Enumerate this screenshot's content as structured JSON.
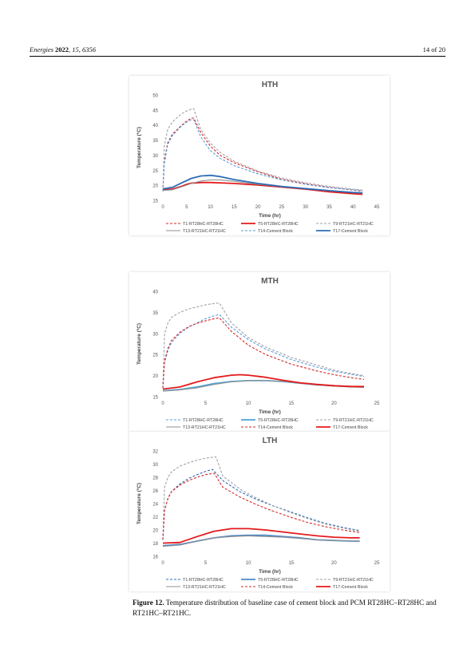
{
  "header": {
    "journal": "Energies",
    "year": "2022",
    "volume": "15",
    "article": "6356",
    "page": "14 of 20"
  },
  "caption": {
    "label": "Figure 12.",
    "text": "Temperature distribution of baseline case of cement block and PCM RT28HC–RT28HC and RT21HC–RT21HC."
  },
  "chart_data": [
    {
      "type": "line",
      "title": "HTH",
      "xlabel": "Time (hr)",
      "ylabel": "Temperature (ºC)",
      "xlim": [
        0,
        45
      ],
      "ylim": [
        15,
        50
      ],
      "xticks": [
        0,
        5,
        10,
        15,
        20,
        25,
        30,
        35,
        40,
        45
      ],
      "yticks": [
        15,
        20,
        25,
        30,
        35,
        40,
        45,
        50
      ],
      "grid": false,
      "legend_position": "bottom",
      "series": [
        {
          "name": "T1-RT28HC-RT28HC",
          "color": "#d62728",
          "dash": "dashed",
          "x": [
            0,
            0.3,
            1,
            2,
            3,
            4,
            5,
            6,
            6.5,
            8,
            10,
            12,
            15,
            20,
            25,
            30,
            35,
            40,
            42
          ],
          "y": [
            18,
            28,
            34,
            37,
            38.5,
            40,
            41.3,
            42.3,
            42.3,
            37.5,
            33,
            30,
            27.5,
            24.5,
            22,
            20.5,
            19.3,
            18.4,
            18.1
          ]
        },
        {
          "name": "T5-RT28HC-RT28HC",
          "color": "#e41a1c",
          "dash": "solid",
          "x": [
            0,
            2,
            4,
            5,
            6,
            8,
            10,
            12,
            15,
            20,
            25,
            30,
            35,
            40,
            42
          ],
          "y": [
            18.5,
            18.7,
            19.7,
            20.3,
            20.7,
            20.9,
            20.9,
            20.8,
            20.6,
            20.1,
            19.4,
            18.7,
            17.8,
            17.2,
            17
          ],
          "thick": true
        },
        {
          "name": "T9-RT21HC-RT21HC",
          "color": "#a0a0a8",
          "dash": "dashed",
          "x": [
            0,
            0.3,
            1,
            2,
            3,
            4,
            5,
            6,
            6.5,
            8,
            10,
            12,
            15,
            20,
            25,
            30,
            35,
            40,
            42
          ],
          "y": [
            18,
            33,
            38.5,
            41,
            42.5,
            43.8,
            44.7,
            45.3,
            45.4,
            38.5,
            34,
            31,
            28,
            24.7,
            22.4,
            20.8,
            19.6,
            18.7,
            18.4
          ]
        },
        {
          "name": "T13-RT21HC-RT21HC",
          "color": "#909090",
          "dash": "solid",
          "x": [
            0,
            2,
            4,
            6,
            8,
            10,
            12,
            15,
            20,
            25,
            30,
            35,
            40,
            42
          ],
          "y": [
            18.3,
            18.5,
            19.5,
            20.6,
            21.4,
            21.8,
            21.8,
            21.3,
            20.3,
            19.6,
            18.9,
            18.2,
            17.6,
            17.4
          ]
        },
        {
          "name": "T14-Cement Block",
          "color": "#5b9bd5",
          "dash": "dashed",
          "x": [
            0,
            0.3,
            1,
            2,
            3,
            4,
            5,
            6,
            6.5,
            8,
            10,
            12,
            15,
            20,
            25,
            30,
            35,
            40,
            42
          ],
          "y": [
            18,
            27,
            33.5,
            36.5,
            38.2,
            39.8,
            41,
            41.8,
            41.8,
            36,
            31.5,
            29,
            26.5,
            23.8,
            21.8,
            20.3,
            19.2,
            18.5,
            18.2
          ]
        },
        {
          "name": "T17-Cement Block",
          "color": "#2e6db4",
          "dash": "solid",
          "x": [
            0,
            2,
            4,
            6,
            8,
            10,
            12,
            15,
            20,
            25,
            30,
            35,
            40,
            42
          ],
          "y": [
            18.8,
            19.3,
            20.8,
            22.3,
            23.1,
            23.3,
            22.9,
            21.9,
            20.6,
            19.6,
            18.9,
            18.2,
            17.6,
            17.5
          ],
          "thick": true
        }
      ]
    },
    {
      "type": "line",
      "title": "MTH",
      "xlabel": "Time (hr)",
      "ylabel": "Temperature (ºC)",
      "xlim": [
        0,
        25
      ],
      "ylim": [
        15,
        40
      ],
      "xticks": [
        0,
        5,
        10,
        15,
        20,
        25
      ],
      "yticks": [
        15,
        20,
        25,
        30,
        35,
        40
      ],
      "grid": false,
      "legend_position": "bottom",
      "series": [
        {
          "name": "T1-RT28HC-RT28HC",
          "color": "#5b9bd5",
          "dash": "dashed",
          "x": [
            0,
            0.2,
            0.6,
            1,
            2,
            3,
            4,
            5,
            6,
            6.6,
            8,
            10,
            12,
            15,
            18,
            20,
            22,
            23.5
          ],
          "y": [
            17,
            23,
            26,
            27.8,
            30,
            31.5,
            32.5,
            33.5,
            34.2,
            34.5,
            31.5,
            28.5,
            26.3,
            23.8,
            22,
            21,
            20.3,
            19.8
          ]
        },
        {
          "name": "T5-RT28HC-RT28HC",
          "color": "#4aa3d8",
          "dash": "solid",
          "x": [
            0,
            2,
            4,
            6,
            8,
            10,
            12,
            14,
            16,
            18,
            20,
            22,
            23.5
          ],
          "y": [
            16.4,
            16.7,
            17.3,
            18.1,
            18.6,
            18.8,
            18.8,
            18.6,
            18.2,
            17.8,
            17.6,
            17.4,
            17.3
          ],
          "thick": true
        },
        {
          "name": "T9-RT21HC-RT21HC",
          "color": "#a0a0a8",
          "dash": "dashed",
          "x": [
            0,
            0.2,
            0.6,
            1,
            2,
            3,
            4,
            5,
            6,
            6.6,
            8,
            10,
            12,
            15,
            18,
            20,
            22,
            23.5
          ],
          "y": [
            17,
            30,
            32.5,
            33.8,
            35,
            35.8,
            36.3,
            36.8,
            37.1,
            37.2,
            32.5,
            29,
            26.8,
            24.3,
            22.5,
            21.3,
            20.5,
            20
          ]
        },
        {
          "name": "T13-RT21HC-RT21HC",
          "color": "#909090",
          "dash": "solid",
          "x": [
            0,
            2,
            4,
            6,
            8,
            10,
            12,
            14,
            16,
            18,
            20,
            22,
            23.5
          ],
          "y": [
            16.3,
            16.6,
            17.1,
            17.9,
            18.5,
            18.8,
            18.8,
            18.6,
            18.2,
            17.8,
            17.5,
            17.3,
            17.2
          ]
        },
        {
          "name": "T14-Cement Block",
          "color": "#d62728",
          "dash": "dashed",
          "x": [
            0,
            0.2,
            0.6,
            1,
            2,
            3,
            4,
            5,
            6,
            6.6,
            8,
            10,
            12,
            15,
            18,
            20,
            22,
            23.5
          ],
          "y": [
            17,
            23.5,
            26.5,
            28.3,
            30.3,
            31.6,
            32.4,
            33,
            33.5,
            33.7,
            30.5,
            27.2,
            25,
            22.7,
            21.1,
            20.2,
            19.5,
            19.1
          ]
        },
        {
          "name": "T17-Cement Block",
          "color": "#e41a1c",
          "dash": "solid",
          "x": [
            0,
            2,
            4,
            6,
            8,
            9,
            10,
            12,
            14,
            16,
            18,
            20,
            22,
            23.5
          ],
          "y": [
            16.8,
            17.3,
            18.5,
            19.5,
            20.1,
            20.2,
            20.1,
            19.6,
            18.9,
            18.3,
            17.9,
            17.6,
            17.4,
            17.4
          ],
          "thick": true
        }
      ]
    },
    {
      "type": "line",
      "title": "LTH",
      "xlabel": "Time (hr)",
      "ylabel": "Temperature (ºC)",
      "xlim": [
        0,
        25
      ],
      "ylim": [
        16,
        32
      ],
      "xticks": [
        0,
        5,
        10,
        15,
        20,
        25
      ],
      "yticks": [
        16,
        18,
        20,
        22,
        24,
        26,
        28,
        30,
        32
      ],
      "grid": false,
      "legend_position": "bottom",
      "series": [
        {
          "name": "T1-RT28HC-RT28HC",
          "color": "#2e6db4",
          "dash": "dashed",
          "x": [
            0,
            0.2,
            0.6,
            1,
            2,
            3,
            4,
            5,
            5.8,
            7,
            9,
            11,
            13,
            15,
            17,
            19,
            21,
            23
          ],
          "y": [
            18.5,
            23,
            24.8,
            25.8,
            27,
            27.8,
            28.4,
            28.9,
            29.2,
            27.5,
            25.8,
            24.6,
            23.6,
            22.7,
            21.8,
            21,
            20.4,
            19.9
          ]
        },
        {
          "name": "T5-RT28HC-RT28HC",
          "color": "#4e88c7",
          "dash": "solid",
          "x": [
            0,
            2,
            4,
            6,
            8,
            10,
            12,
            14,
            16,
            18,
            20,
            22,
            23
          ],
          "y": [
            17.6,
            17.8,
            18.3,
            18.8,
            19.1,
            19.2,
            19.2,
            19,
            18.8,
            18.5,
            18.4,
            18.3,
            18.3
          ],
          "thick": true
        },
        {
          "name": "T9-RT21HC-RT21HC",
          "color": "#a0a0a8",
          "dash": "dashed",
          "x": [
            0,
            0.2,
            0.6,
            1,
            2,
            3,
            4,
            5,
            6.2,
            7,
            9,
            11,
            13,
            15,
            17,
            19,
            21,
            23
          ],
          "y": [
            18.5,
            26.5,
            28,
            28.8,
            29.7,
            30.2,
            30.6,
            30.9,
            31.1,
            28.2,
            26.2,
            24.8,
            23.6,
            22.6,
            21.7,
            20.9,
            20.3,
            19.8
          ]
        },
        {
          "name": "T13-RT21HC-RT21HC",
          "color": "#909090",
          "dash": "solid",
          "x": [
            0,
            2,
            4,
            6,
            8,
            10,
            12,
            14,
            16,
            18,
            20,
            22,
            23
          ],
          "y": [
            17.5,
            17.7,
            18.3,
            18.8,
            19,
            19.1,
            19,
            18.9,
            18.7,
            18.5,
            18.4,
            18.3,
            18.3
          ]
        },
        {
          "name": "T14-Cement Block",
          "color": "#d62728",
          "dash": "dashed",
          "x": [
            0,
            0.2,
            0.6,
            1,
            2,
            3,
            4,
            5,
            6,
            7,
            9,
            11,
            13,
            15,
            17,
            19,
            21,
            23
          ],
          "y": [
            18.5,
            23,
            24.8,
            25.8,
            26.8,
            27.5,
            28,
            28.4,
            28.6,
            26.5,
            25,
            23.8,
            22.8,
            21.9,
            21.1,
            20.5,
            20,
            19.6
          ]
        },
        {
          "name": "T17-Cement Block",
          "color": "#e41a1c",
          "dash": "solid",
          "x": [
            0,
            2,
            4,
            6,
            8,
            10,
            12,
            14,
            16,
            18,
            20,
            22,
            23
          ],
          "y": [
            18,
            18.1,
            19,
            19.8,
            20.2,
            20.2,
            20,
            19.7,
            19.4,
            19.1,
            18.9,
            18.8,
            18.8
          ],
          "thick": true
        }
      ]
    }
  ]
}
